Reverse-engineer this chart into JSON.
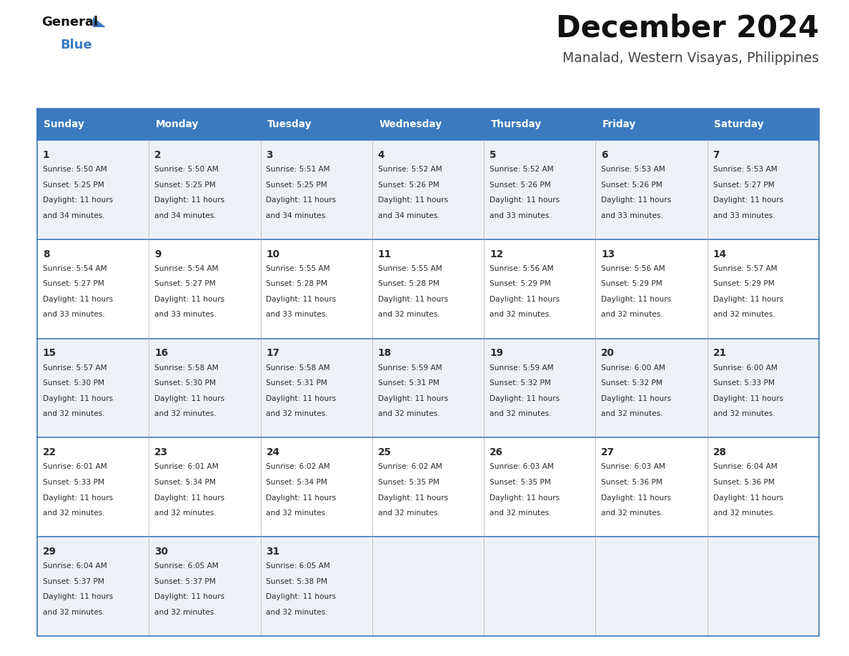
{
  "title": "December 2024",
  "subtitle": "Manalad, Western Visayas, Philippines",
  "header_bg_color": "#3a7abf",
  "header_text_color": "#ffffff",
  "row_bg_odd": "#eef2f7",
  "row_bg_even": "#ffffff",
  "border_color": "#3a7abf",
  "cell_border_color": "#3a7abf",
  "day_headers": [
    "Sunday",
    "Monday",
    "Tuesday",
    "Wednesday",
    "Thursday",
    "Friday",
    "Saturday"
  ],
  "calendar": [
    [
      {
        "day": 1,
        "sunrise": "5:50 AM",
        "sunset": "5:25 PM",
        "daylight": "11 hours and 34 minutes."
      },
      {
        "day": 2,
        "sunrise": "5:50 AM",
        "sunset": "5:25 PM",
        "daylight": "11 hours and 34 minutes."
      },
      {
        "day": 3,
        "sunrise": "5:51 AM",
        "sunset": "5:25 PM",
        "daylight": "11 hours and 34 minutes."
      },
      {
        "day": 4,
        "sunrise": "5:52 AM",
        "sunset": "5:26 PM",
        "daylight": "11 hours and 34 minutes."
      },
      {
        "day": 5,
        "sunrise": "5:52 AM",
        "sunset": "5:26 PM",
        "daylight": "11 hours and 33 minutes."
      },
      {
        "day": 6,
        "sunrise": "5:53 AM",
        "sunset": "5:26 PM",
        "daylight": "11 hours and 33 minutes."
      },
      {
        "day": 7,
        "sunrise": "5:53 AM",
        "sunset": "5:27 PM",
        "daylight": "11 hours and 33 minutes."
      }
    ],
    [
      {
        "day": 8,
        "sunrise": "5:54 AM",
        "sunset": "5:27 PM",
        "daylight": "11 hours and 33 minutes."
      },
      {
        "day": 9,
        "sunrise": "5:54 AM",
        "sunset": "5:27 PM",
        "daylight": "11 hours and 33 minutes."
      },
      {
        "day": 10,
        "sunrise": "5:55 AM",
        "sunset": "5:28 PM",
        "daylight": "11 hours and 33 minutes."
      },
      {
        "day": 11,
        "sunrise": "5:55 AM",
        "sunset": "5:28 PM",
        "daylight": "11 hours and 32 minutes."
      },
      {
        "day": 12,
        "sunrise": "5:56 AM",
        "sunset": "5:29 PM",
        "daylight": "11 hours and 32 minutes."
      },
      {
        "day": 13,
        "sunrise": "5:56 AM",
        "sunset": "5:29 PM",
        "daylight": "11 hours and 32 minutes."
      },
      {
        "day": 14,
        "sunrise": "5:57 AM",
        "sunset": "5:29 PM",
        "daylight": "11 hours and 32 minutes."
      }
    ],
    [
      {
        "day": 15,
        "sunrise": "5:57 AM",
        "sunset": "5:30 PM",
        "daylight": "11 hours and 32 minutes."
      },
      {
        "day": 16,
        "sunrise": "5:58 AM",
        "sunset": "5:30 PM",
        "daylight": "11 hours and 32 minutes."
      },
      {
        "day": 17,
        "sunrise": "5:58 AM",
        "sunset": "5:31 PM",
        "daylight": "11 hours and 32 minutes."
      },
      {
        "day": 18,
        "sunrise": "5:59 AM",
        "sunset": "5:31 PM",
        "daylight": "11 hours and 32 minutes."
      },
      {
        "day": 19,
        "sunrise": "5:59 AM",
        "sunset": "5:32 PM",
        "daylight": "11 hours and 32 minutes."
      },
      {
        "day": 20,
        "sunrise": "6:00 AM",
        "sunset": "5:32 PM",
        "daylight": "11 hours and 32 minutes."
      },
      {
        "day": 21,
        "sunrise": "6:00 AM",
        "sunset": "5:33 PM",
        "daylight": "11 hours and 32 minutes."
      }
    ],
    [
      {
        "day": 22,
        "sunrise": "6:01 AM",
        "sunset": "5:33 PM",
        "daylight": "11 hours and 32 minutes."
      },
      {
        "day": 23,
        "sunrise": "6:01 AM",
        "sunset": "5:34 PM",
        "daylight": "11 hours and 32 minutes."
      },
      {
        "day": 24,
        "sunrise": "6:02 AM",
        "sunset": "5:34 PM",
        "daylight": "11 hours and 32 minutes."
      },
      {
        "day": 25,
        "sunrise": "6:02 AM",
        "sunset": "5:35 PM",
        "daylight": "11 hours and 32 minutes."
      },
      {
        "day": 26,
        "sunrise": "6:03 AM",
        "sunset": "5:35 PM",
        "daylight": "11 hours and 32 minutes."
      },
      {
        "day": 27,
        "sunrise": "6:03 AM",
        "sunset": "5:36 PM",
        "daylight": "11 hours and 32 minutes."
      },
      {
        "day": 28,
        "sunrise": "6:04 AM",
        "sunset": "5:36 PM",
        "daylight": "11 hours and 32 minutes."
      }
    ],
    [
      {
        "day": 29,
        "sunrise": "6:04 AM",
        "sunset": "5:37 PM",
        "daylight": "11 hours and 32 minutes."
      },
      {
        "day": 30,
        "sunrise": "6:05 AM",
        "sunset": "5:37 PM",
        "daylight": "11 hours and 32 minutes."
      },
      {
        "day": 31,
        "sunrise": "6:05 AM",
        "sunset": "5:38 PM",
        "daylight": "11 hours and 32 minutes."
      },
      null,
      null,
      null,
      null
    ]
  ],
  "fig_width": 11.88,
  "fig_height": 9.18,
  "dpi": 100
}
